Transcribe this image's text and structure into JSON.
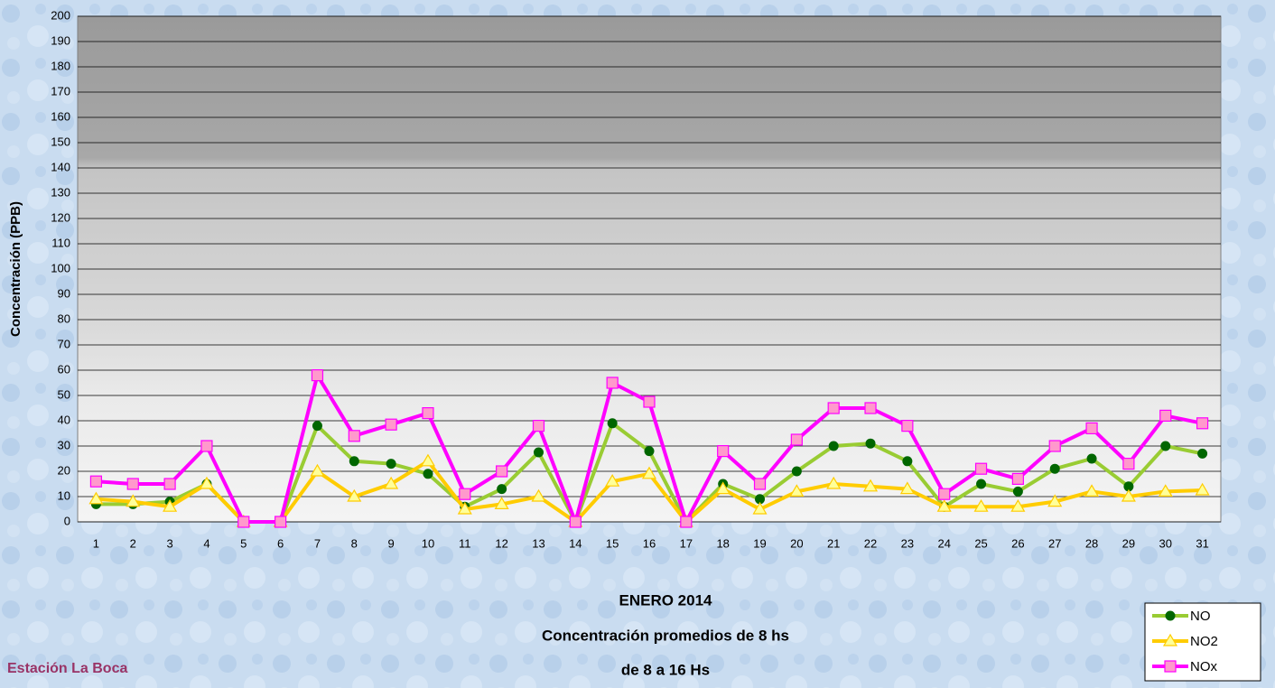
{
  "chart_data": {
    "type": "line",
    "title": [
      "ENERO 2014",
      "Concentración promedios de 8 hs",
      "de 8 a 16 Hs"
    ],
    "annotation": "Estación La Boca",
    "y_label": "Concentración (PPB)",
    "categories": [
      "1",
      "2",
      "3",
      "4",
      "5",
      "6",
      "7",
      "8",
      "9",
      "10",
      "11",
      "12",
      "13",
      "14",
      "15",
      "16",
      "17",
      "18",
      "19",
      "20",
      "21",
      "22",
      "23",
      "24",
      "25",
      "26",
      "27",
      "28",
      "29",
      "30",
      "31"
    ],
    "series": [
      {
        "name": "NO",
        "color": "#99cc33",
        "marker": "circle",
        "marker_color": "#006600",
        "values": [
          7,
          7,
          8,
          15,
          0,
          0,
          38,
          24,
          23,
          19,
          6,
          13,
          27.5,
          0,
          39,
          28,
          0,
          15,
          9,
          20,
          30,
          31,
          24,
          6,
          15,
          12,
          21,
          25,
          14,
          30,
          27
        ]
      },
      {
        "name": "NO2",
        "color": "#ffcc00",
        "marker": "triangle",
        "marker_color": "#ffff99",
        "values": [
          9,
          8,
          6,
          15,
          0,
          0,
          20,
          10,
          15,
          24,
          5,
          7,
          10,
          0,
          16,
          19,
          0,
          13,
          5,
          12,
          15,
          14,
          13,
          6,
          6,
          6,
          8,
          12,
          10,
          12,
          12.5
        ]
      },
      {
        "name": "NOx",
        "color": "#ff00ff",
        "marker": "square",
        "marker_color": "#ff99cc",
        "values": [
          16,
          15,
          15,
          30,
          0,
          0,
          58,
          34,
          38.5,
          43,
          11,
          20,
          38,
          0,
          55,
          47.5,
          0,
          28,
          15,
          32.5,
          45,
          45,
          38,
          11,
          21,
          17,
          30,
          37,
          23,
          42,
          39
        ]
      }
    ],
    "ylim": [
      0,
      200
    ],
    "yticks": [
      0,
      10,
      20,
      30,
      40,
      50,
      60,
      70,
      80,
      90,
      100,
      110,
      120,
      130,
      140,
      150,
      160,
      170,
      180,
      190,
      200
    ],
    "grid": true
  }
}
